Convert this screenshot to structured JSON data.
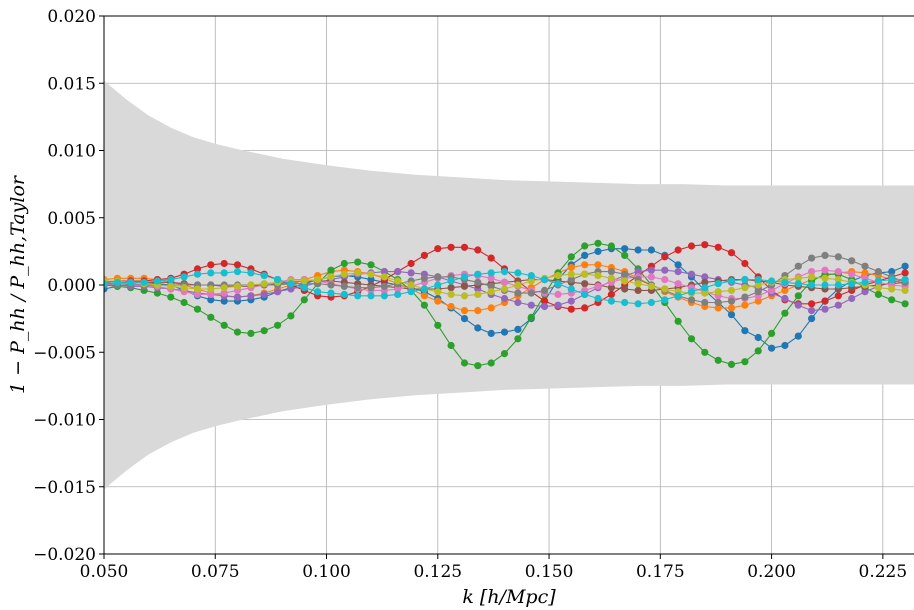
{
  "chart_data": {
    "type": "line",
    "title": "",
    "xlabel": "k [h/Mpc]",
    "ylabel": "1 − P_hh / P_hh,Taylor",
    "xlim": [
      0.05,
      0.232
    ],
    "ylim": [
      -0.02,
      0.02
    ],
    "grid": true,
    "x_ticks": [
      "0.050",
      "0.075",
      "0.100",
      "0.125",
      "0.150",
      "0.175",
      "0.200",
      "0.225"
    ],
    "y_ticks": [
      "0.020",
      "0.015",
      "0.010",
      "0.005",
      "0.000",
      "−0.005",
      "−0.010",
      "−0.015",
      "−0.020"
    ],
    "x_tick_values": [
      0.05,
      0.075,
      0.1,
      0.125,
      0.15,
      0.175,
      0.2,
      0.225
    ],
    "y_tick_values": [
      0.02,
      0.015,
      0.01,
      0.005,
      0.0,
      -0.005,
      -0.01,
      -0.015,
      -0.02
    ],
    "band": {
      "color": "#d9d9d9",
      "x": [
        0.05,
        0.055,
        0.06,
        0.065,
        0.07,
        0.075,
        0.08,
        0.09,
        0.1,
        0.11,
        0.12,
        0.13,
        0.14,
        0.15,
        0.16,
        0.17,
        0.18,
        0.19,
        0.2,
        0.21,
        0.22,
        0.232
      ],
      "upper": [
        0.0152,
        0.0138,
        0.0126,
        0.0117,
        0.011,
        0.0105,
        0.0101,
        0.0094,
        0.0089,
        0.0085,
        0.0082,
        0.008,
        0.0078,
        0.0077,
        0.0076,
        0.0075,
        0.0075,
        0.0074,
        0.0074,
        0.0074,
        0.0074,
        0.0074
      ],
      "lower": [
        -0.0152,
        -0.0138,
        -0.0126,
        -0.0117,
        -0.011,
        -0.0105,
        -0.0101,
        -0.0094,
        -0.0089,
        -0.0085,
        -0.0082,
        -0.008,
        -0.0078,
        -0.0077,
        -0.0076,
        -0.0075,
        -0.0075,
        -0.0074,
        -0.0074,
        -0.0074,
        -0.0074,
        -0.0074
      ]
    },
    "x": [
      0.05,
      0.053,
      0.056,
      0.059,
      0.062,
      0.065,
      0.068,
      0.071,
      0.074,
      0.077,
      0.08,
      0.083,
      0.086,
      0.089,
      0.092,
      0.095,
      0.098,
      0.101,
      0.104,
      0.107,
      0.11,
      0.113,
      0.116,
      0.119,
      0.122,
      0.125,
      0.128,
      0.131,
      0.134,
      0.137,
      0.14,
      0.143,
      0.146,
      0.149,
      0.152,
      0.155,
      0.158,
      0.161,
      0.164,
      0.167,
      0.17,
      0.173,
      0.176,
      0.179,
      0.182,
      0.185,
      0.188,
      0.191,
      0.194,
      0.197,
      0.2,
      0.203,
      0.206,
      0.209,
      0.212,
      0.215,
      0.218,
      0.221,
      0.224,
      0.227,
      0.23
    ],
    "series": [
      {
        "color": "#1f77b4",
        "values": [
          -0.0003,
          -0.0001,
          0.0001,
          0.0002,
          0.0001,
          0.0,
          -0.0004,
          -0.0008,
          -0.0011,
          -0.0012,
          -0.0012,
          -0.0011,
          -0.0009,
          -0.0005,
          -0.0002,
          0.0001,
          0.0004,
          0.0006,
          0.0007,
          0.0006,
          0.0004,
          0.0002,
          0.0,
          -0.0002,
          -0.0005,
          -0.001,
          -0.0017,
          -0.0025,
          -0.0032,
          -0.0036,
          -0.0035,
          -0.0033,
          -0.0025,
          -0.0012,
          0.0004,
          0.0015,
          0.0022,
          0.0025,
          0.0027,
          0.0027,
          0.0026,
          0.0026,
          0.0022,
          0.0015,
          0.0006,
          -0.0004,
          -0.0013,
          -0.0022,
          -0.0034,
          -0.0039,
          -0.0047,
          -0.0045,
          -0.0038,
          -0.0025,
          -0.0012,
          -0.0003,
          0.0003,
          0.0007,
          0.0009,
          0.001,
          0.0014
        ]
      },
      {
        "color": "#ff7f0e",
        "values": [
          0.0004,
          0.0005,
          0.0005,
          0.0005,
          0.0004,
          0.0002,
          0.0,
          -0.0003,
          -0.0006,
          -0.0008,
          -0.0009,
          -0.0008,
          -0.0006,
          -0.0003,
          0.0,
          0.0004,
          0.0007,
          0.001,
          0.0011,
          0.001,
          0.0008,
          0.0005,
          0.0001,
          -0.0003,
          -0.0008,
          -0.0012,
          -0.0016,
          -0.0019,
          -0.0019,
          -0.0017,
          -0.0013,
          -0.0008,
          -0.0002,
          0.0004,
          0.0009,
          0.0013,
          0.0015,
          0.0015,
          0.0013,
          0.001,
          0.0005,
          0.0,
          -0.0005,
          -0.0009,
          -0.0013,
          -0.0016,
          -0.0017,
          -0.0017,
          -0.0015,
          -0.0012,
          -0.0008,
          -0.0004,
          0.0,
          0.0004,
          0.0007,
          0.0009,
          0.001,
          0.0009,
          0.0007,
          0.0004,
          0.0001
        ]
      },
      {
        "color": "#2ca02c",
        "values": [
          0.0,
          -0.0001,
          -0.0002,
          -0.0004,
          -0.0006,
          -0.0009,
          -0.0013,
          -0.0018,
          -0.0024,
          -0.003,
          -0.0035,
          -0.0036,
          -0.0034,
          -0.003,
          -0.0023,
          -0.0011,
          0.0001,
          0.0011,
          0.0016,
          0.0017,
          0.0015,
          0.001,
          0.0004,
          -0.0004,
          -0.0015,
          -0.003,
          -0.0045,
          -0.0058,
          -0.006,
          -0.0058,
          -0.0051,
          -0.004,
          -0.0024,
          -0.0007,
          0.0009,
          0.0021,
          0.0029,
          0.0031,
          0.0029,
          0.0022,
          0.0012,
          0.0,
          -0.0013,
          -0.0027,
          -0.004,
          -0.005,
          -0.0056,
          -0.0059,
          -0.0057,
          -0.0049,
          -0.0036,
          -0.0021,
          -0.0008,
          0.0003,
          0.0008,
          0.0008,
          0.0004,
          -0.0002,
          -0.0007,
          -0.0011,
          -0.0014
        ]
      },
      {
        "color": "#d62728",
        "values": [
          0.0002,
          0.0003,
          0.0003,
          0.0003,
          0.0004,
          0.0005,
          0.0008,
          0.0012,
          0.0015,
          0.0016,
          0.0015,
          0.0012,
          0.0008,
          0.0004,
          0.0,
          -0.0004,
          -0.0008,
          -0.0009,
          -0.0008,
          -0.0005,
          -0.0001,
          0.0004,
          0.001,
          0.0016,
          0.0022,
          0.0027,
          0.0028,
          0.0028,
          0.0026,
          0.002,
          0.0012,
          0.0003,
          -0.0005,
          -0.0012,
          -0.0016,
          -0.0018,
          -0.0017,
          -0.0013,
          -0.0007,
          0.0,
          0.0007,
          0.0014,
          0.0021,
          0.0026,
          0.0029,
          0.003,
          0.0028,
          0.0024,
          0.0016,
          0.0006,
          -0.0004,
          -0.0011,
          -0.0014,
          -0.0014,
          -0.0012,
          -0.0008,
          -0.0004,
          0.0,
          0.0003,
          0.0006,
          0.0009
        ]
      },
      {
        "color": "#9467bd",
        "values": [
          0.0,
          0.0,
          -0.0001,
          -0.0001,
          -0.0002,
          -0.0003,
          -0.0004,
          -0.0006,
          -0.0007,
          -0.0008,
          -0.0009,
          -0.0008,
          -0.0007,
          -0.0005,
          -0.0003,
          -0.0001,
          0.0002,
          0.0004,
          0.0006,
          0.0008,
          0.0009,
          0.001,
          0.001,
          0.0009,
          0.0008,
          0.0006,
          0.0003,
          0.0,
          -0.0003,
          -0.0007,
          -0.001,
          -0.0013,
          -0.0015,
          -0.0016,
          -0.0015,
          -0.0012,
          -0.0007,
          -0.0002,
          0.0003,
          0.0007,
          0.001,
          0.0011,
          0.0011,
          0.001,
          0.0008,
          0.0006,
          0.0004,
          0.0002,
          0.0,
          -0.0002,
          -0.0006,
          -0.001,
          -0.0015,
          -0.0019,
          -0.0018,
          -0.0015,
          -0.001,
          -0.0005,
          -0.0001,
          0.0002,
          0.0004
        ]
      },
      {
        "color": "#8c564b",
        "values": [
          0.0001,
          0.0001,
          0.0002,
          0.0002,
          0.0002,
          0.0002,
          0.0001,
          0.0,
          0.0,
          -0.0001,
          -0.0001,
          -0.0001,
          0.0,
          0.0001,
          0.0002,
          0.0003,
          0.0003,
          0.0003,
          0.0002,
          0.0001,
          0.0,
          -0.0001,
          -0.0002,
          -0.0003,
          -0.0003,
          -0.0003,
          -0.0002,
          -0.0001,
          0.0,
          0.0001,
          0.0002,
          0.0003,
          0.0004,
          0.0004,
          0.0003,
          0.0002,
          0.0001,
          0.0,
          -0.0002,
          -0.0003,
          -0.0004,
          -0.0004,
          -0.0003,
          -0.0002,
          0.0,
          0.0002,
          0.0003,
          0.0004,
          0.0004,
          0.0003,
          0.0002,
          0.0,
          -0.0001,
          -0.0002,
          -0.0003,
          -0.0003,
          -0.0002,
          -0.0001,
          0.0,
          0.0001,
          0.0002
        ]
      },
      {
        "color": "#e377c2",
        "values": [
          0.0,
          0.0001,
          0.0001,
          0.0,
          -0.0001,
          -0.0003,
          -0.0005,
          -0.0007,
          -0.0007,
          -0.0006,
          -0.0004,
          -0.0002,
          0.0,
          0.0002,
          0.0004,
          0.0004,
          0.0003,
          0.0001,
          -0.0001,
          -0.0003,
          -0.0004,
          -0.0004,
          -0.0003,
          -0.0001,
          0.0002,
          0.0005,
          0.0007,
          0.0008,
          0.0007,
          0.0005,
          0.0002,
          -0.0001,
          -0.0004,
          -0.0006,
          -0.0007,
          -0.0006,
          -0.0004,
          -0.0001,
          0.0002,
          0.0005,
          0.0006,
          0.0006,
          0.0004,
          0.0001,
          -0.0002,
          -0.0005,
          -0.0008,
          -0.001,
          -0.001,
          -0.0008,
          -0.0004,
          0.0001,
          0.0006,
          0.001,
          0.0011,
          0.001,
          0.0008,
          0.0005,
          0.0002,
          0.0,
          -0.0001
        ]
      },
      {
        "color": "#7f7f7f",
        "values": [
          0.0,
          0.0,
          0.0,
          0.0,
          0.0,
          0.0,
          0.0,
          0.0,
          0.0,
          0.0,
          0.0,
          0.0,
          0.0,
          0.0,
          0.0001,
          0.0001,
          0.0001,
          0.0,
          -0.0001,
          -0.0002,
          -0.0002,
          -0.0001,
          0.0001,
          0.0003,
          0.0005,
          0.0006,
          0.0006,
          0.0004,
          0.0002,
          -0.0001,
          -0.0004,
          -0.0006,
          -0.0006,
          -0.0004,
          0.0,
          0.0004,
          0.0008,
          0.001,
          0.001,
          0.0008,
          0.0004,
          0.0,
          -0.0004,
          -0.0008,
          -0.0011,
          -0.0013,
          -0.0013,
          -0.0012,
          -0.0009,
          -0.0005,
          0.0,
          0.0007,
          0.0014,
          0.002,
          0.0022,
          0.0021,
          0.0018,
          0.0014,
          0.001,
          0.0006,
          0.0002
        ]
      },
      {
        "color": "#bcbd22",
        "values": [
          0.0003,
          0.0003,
          0.0002,
          0.0001,
          0.0,
          -0.0001,
          -0.0002,
          -0.0003,
          -0.0003,
          -0.0002,
          -0.0001,
          0.0,
          0.0001,
          0.0002,
          0.0003,
          0.0003,
          0.0004,
          0.0006,
          0.0008,
          0.0009,
          0.0008,
          0.0006,
          0.0003,
          0.0,
          -0.0003,
          -0.0005,
          -0.0007,
          -0.0008,
          -0.0007,
          -0.0005,
          -0.0003,
          0.0,
          0.0003,
          0.0005,
          0.0007,
          0.0008,
          0.0008,
          0.0007,
          0.0005,
          0.0003,
          0.0001,
          -0.0001,
          -0.0003,
          -0.0005,
          -0.0006,
          -0.0006,
          -0.0005,
          -0.0004,
          -0.0002,
          0.0,
          0.0002,
          0.0004,
          0.0005,
          0.0006,
          0.0005,
          0.0004,
          0.0002,
          0.0,
          -0.0002,
          -0.0003,
          -0.0004
        ]
      },
      {
        "color": "#17becf",
        "values": [
          0.0001,
          0.0002,
          0.0002,
          0.0002,
          0.0003,
          0.0004,
          0.0006,
          0.0008,
          0.0009,
          0.0009,
          0.001,
          0.0009,
          0.0007,
          0.0004,
          0.0001,
          -0.0002,
          -0.0005,
          -0.0006,
          -0.0007,
          -0.0008,
          -0.0008,
          -0.0008,
          -0.0007,
          -0.0005,
          -0.0003,
          0.0,
          0.0003,
          0.0006,
          0.0008,
          0.0009,
          0.001,
          0.0009,
          0.0007,
          0.0004,
          0.0001,
          -0.0003,
          -0.0007,
          -0.001,
          -0.0012,
          -0.0013,
          -0.0014,
          -0.0013,
          -0.0011,
          -0.0008,
          -0.0005,
          -0.0002,
          0.0001,
          0.0003,
          0.0004,
          0.0004,
          0.0003,
          0.0002,
          0.0001,
          0.0,
          0.0,
          0.0,
          0.0001,
          0.0002,
          0.0003,
          0.0004,
          0.0004
        ]
      }
    ]
  }
}
